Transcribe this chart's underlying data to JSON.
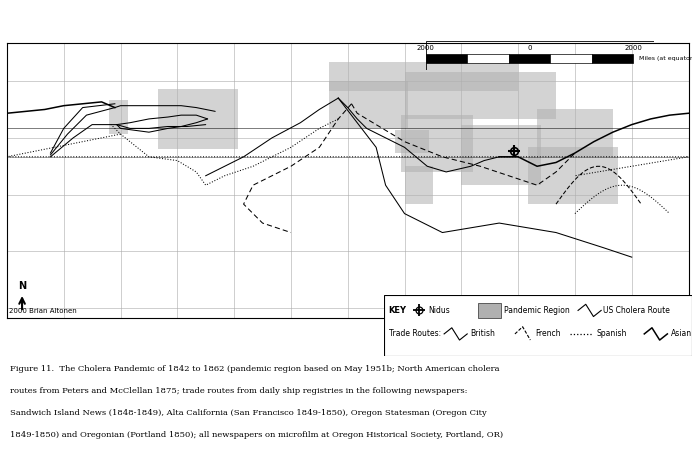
{
  "figsize": [
    6.92,
    4.54
  ],
  "dpi": 100,
  "pandemic_color": "#b0b0b0",
  "land_color": "#f2f2f2",
  "ocean_color": "#ffffff",
  "grid_color": "#aaaaaa",
  "border_color": "#555555",
  "copyright": "2000 Brian Altonen",
  "scale_left": "2000",
  "scale_mid": "0",
  "scale_right": "2000",
  "scale_units": "Miles (at equator)",
  "caption_line1": "Figure 11.  The Cholera Pandemic of 1842 to 1862 (pandemic region based on May 1951b; North American cholera",
  "caption_line2": "routes from Peters and McClellan 1875; trade routes from daily ship registries in the following newspapers:",
  "caption_line3": "Sandwich Island News (1848-1849), Alta California (San Francisco 1849-1850), Oregon Statesman (Oregon City",
  "caption_line4": "1849-1850) and Oregonian (Portland 1850); all newspapers on microfilm at Oregon Historical Society, Portland, OR)",
  "legend_key": "KEY",
  "legend_nidus": "Nidus",
  "legend_pandemic": "Pandemic Region",
  "legend_us": "US Cholera Route",
  "legend_trade": "Trade Routes:",
  "legend_british": "British",
  "legend_french": "French",
  "legend_spanish": "Spanish",
  "legend_asian": "Asian",
  "map_xlim": [
    -180,
    180
  ],
  "map_ylim": [
    -65,
    80
  ]
}
